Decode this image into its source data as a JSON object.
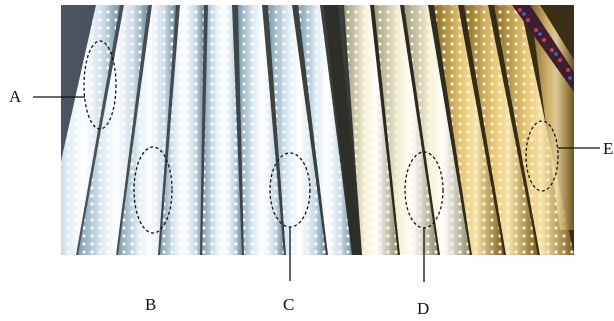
{
  "labels": {
    "a": "A",
    "b": "B",
    "c": "C",
    "d": "D",
    "e": "E"
  },
  "colors": {
    "cool_white": "#e8f1f6",
    "warm_white": "#f3e7b0",
    "yellow": "#d9b45a",
    "background": "#2a2a2a",
    "red_led": "#d8345a",
    "blue_led": "#4a5fe0"
  }
}
